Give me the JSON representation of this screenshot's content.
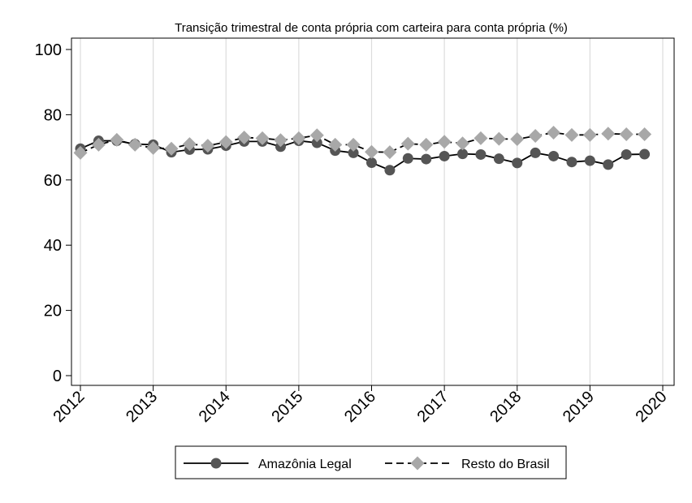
{
  "chart_data": {
    "type": "line",
    "title": "Transição trimestral de conta própria com carteira para conta própria (%)",
    "xlabel": "",
    "ylabel": "",
    "xlim": [
      2012,
      2020
    ],
    "ylim": [
      0,
      100
    ],
    "x_ticks": [
      "2012",
      "2013",
      "2014",
      "2015",
      "2016",
      "2017",
      "2018",
      "2019",
      "2020"
    ],
    "y_ticks": [
      "0",
      "20",
      "40",
      "60",
      "80",
      "100"
    ],
    "grid": "vertical",
    "legend": "bottom",
    "x": [
      2012.0,
      2012.25,
      2012.5,
      2012.75,
      2013.0,
      2013.25,
      2013.5,
      2013.75,
      2014.0,
      2014.25,
      2014.5,
      2014.75,
      2015.0,
      2015.25,
      2015.5,
      2015.75,
      2016.0,
      2016.25,
      2016.5,
      2016.75,
      2017.0,
      2017.25,
      2017.5,
      2017.75,
      2018.0,
      2018.25,
      2018.5,
      2018.75,
      2019.0,
      2019.25,
      2019.5,
      2019.75
    ],
    "series": [
      {
        "name": "Amazônia Legal",
        "color": "#555555",
        "line": "solid",
        "marker": "circle",
        "values": [
          69.6,
          72.0,
          72.0,
          71.0,
          70.8,
          68.5,
          69.3,
          69.4,
          70.5,
          71.8,
          71.8,
          70.2,
          72.0,
          71.4,
          69.0,
          68.3,
          65.3,
          63.0,
          66.6,
          66.4,
          67.3,
          68.0,
          67.8,
          66.5,
          65.2,
          68.3,
          67.3,
          65.5,
          65.9,
          64.7,
          67.8,
          67.9
        ]
      },
      {
        "name": "Resto do Brasil",
        "color": "#a8a8a8",
        "line": "dashed",
        "marker": "diamond",
        "values": [
          68.3,
          70.8,
          72.3,
          70.8,
          69.8,
          69.6,
          71.0,
          70.5,
          71.6,
          73.0,
          72.8,
          72.2,
          72.8,
          73.7,
          70.8,
          70.8,
          68.6,
          68.5,
          71.1,
          70.8,
          71.7,
          71.2,
          72.8,
          72.6,
          72.5,
          73.5,
          74.5,
          73.8,
          73.8,
          74.2,
          74.0,
          74.0
        ]
      }
    ]
  }
}
